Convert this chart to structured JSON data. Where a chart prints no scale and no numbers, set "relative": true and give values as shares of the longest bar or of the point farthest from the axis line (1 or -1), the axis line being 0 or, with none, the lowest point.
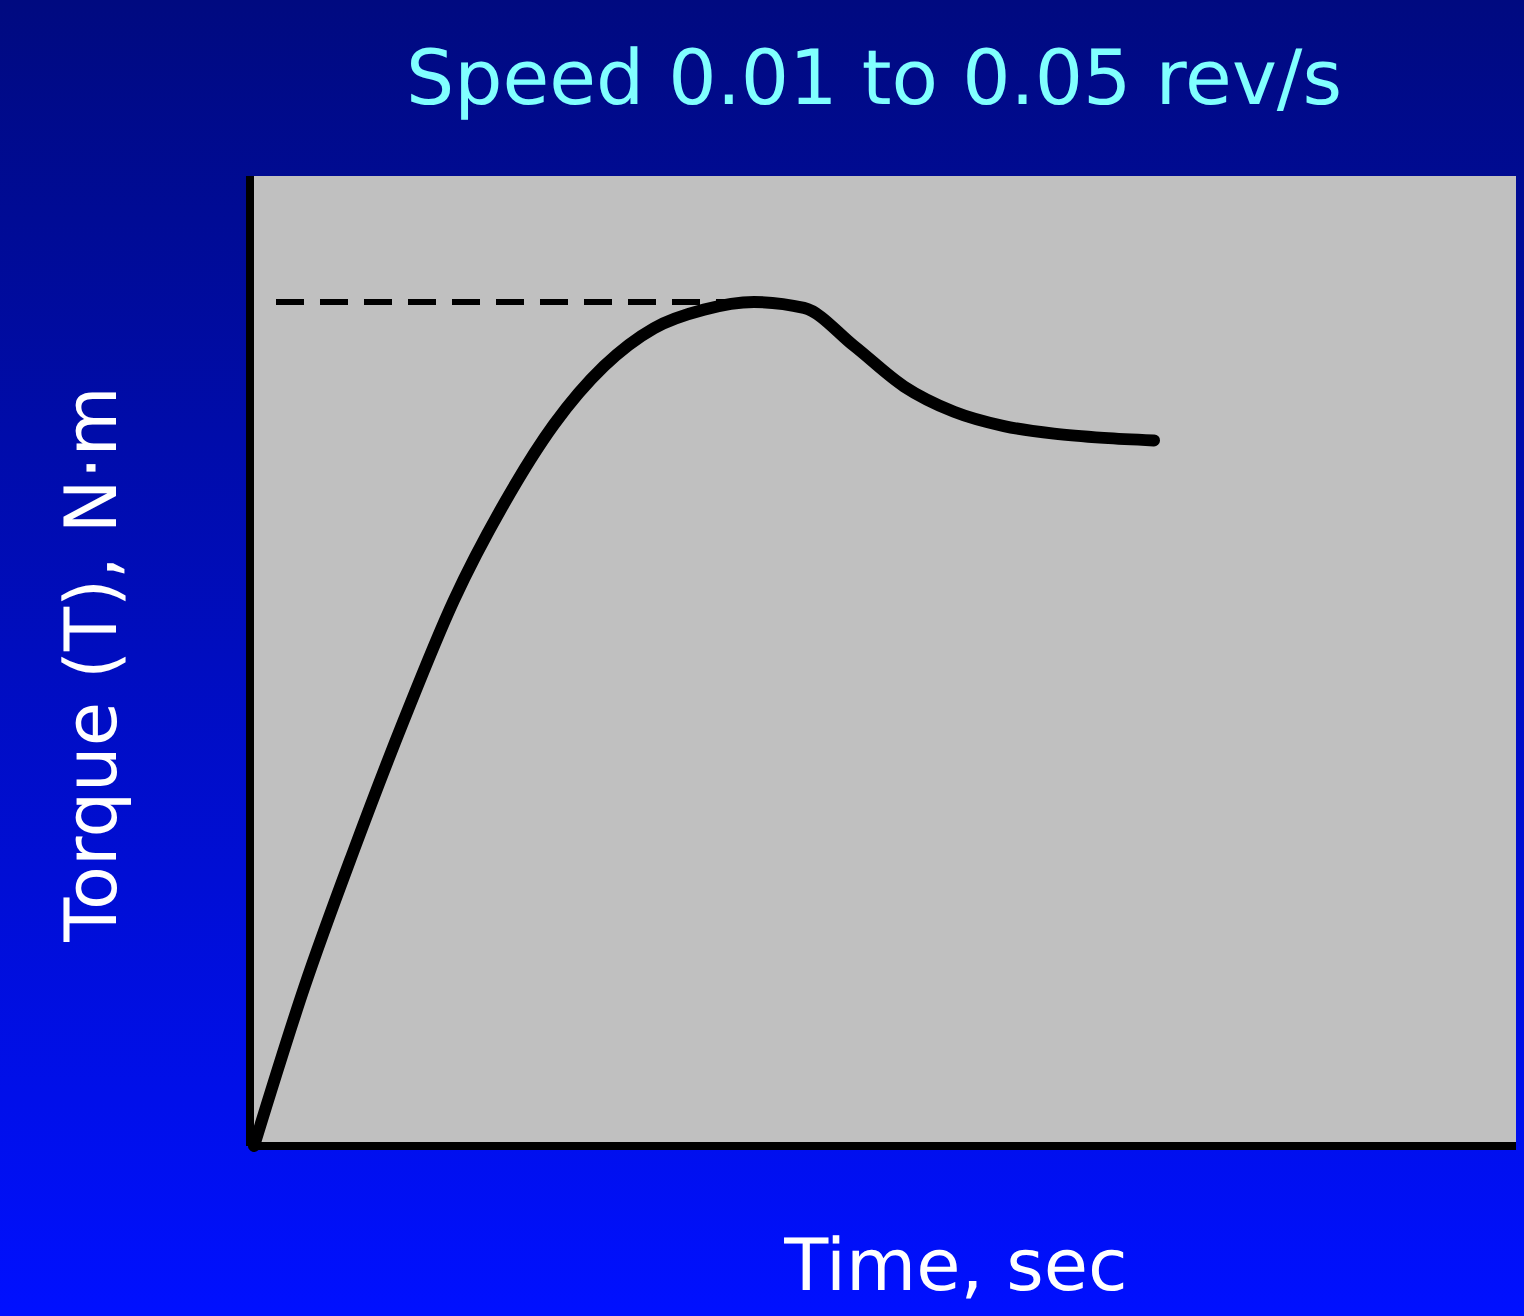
{
  "chart_data": {
    "type": "line",
    "title": "Speed 0.01 to 0.05 rev/s",
    "xlabel": "Time, sec",
    "ylabel": "Torque (T), N·m",
    "relative": true,
    "categories": [
      null,
      null,
      null,
      null,
      null,
      null,
      null,
      null,
      null,
      null,
      null,
      null,
      null,
      null,
      null,
      null,
      null,
      null,
      null,
      null,
      null,
      null,
      null,
      null,
      null,
      null
    ],
    "series": [
      {
        "color": "#000000",
        "values": [
          0,
          0.187,
          0.351,
          0.505,
          0.647,
          0.761,
          0.855,
          0.924,
          0.969,
          0.991,
          1,
          0.993,
          0.948,
          0.9,
          0.87,
          0.853,
          0.844,
          0.839,
          0.836,
          null,
          null,
          null,
          null,
          null,
          null,
          null
        ]
      }
    ],
    "ref_lines": [
      {
        "axis": "y",
        "value": 1,
        "color": "#000000",
        "line_style": "dashed"
      }
    ],
    "marker": "none",
    "line_style": "solid"
  }
}
